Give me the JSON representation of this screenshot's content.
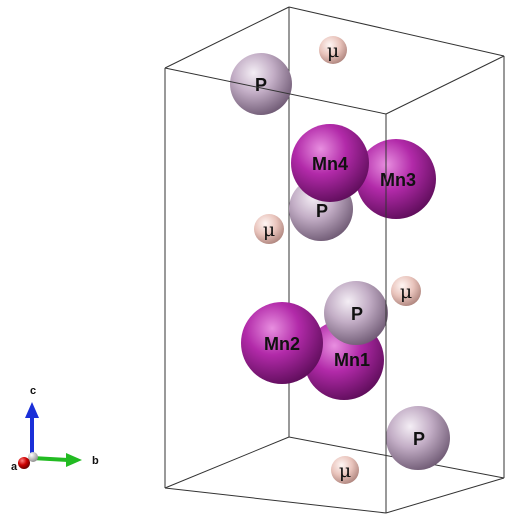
{
  "atoms": [
    {
      "id": "P-top",
      "label": "P",
      "type": "P"
    },
    {
      "id": "Mn3",
      "label": "Mn3",
      "type": "Mn"
    },
    {
      "id": "P-mid",
      "label": "P",
      "type": "P"
    },
    {
      "id": "Mn4",
      "label": "Mn4",
      "type": "Mn"
    },
    {
      "id": "Mn1",
      "label": "Mn1",
      "type": "Mn"
    },
    {
      "id": "Mn2",
      "label": "Mn2",
      "type": "Mn"
    },
    {
      "id": "P-low",
      "label": "P",
      "type": "P"
    },
    {
      "id": "P-bottom",
      "label": "P",
      "type": "P"
    }
  ],
  "muon_sites": [
    {
      "id": "mu-top",
      "label": "μ"
    },
    {
      "id": "mu-left",
      "label": "μ"
    },
    {
      "id": "mu-right",
      "label": "μ"
    },
    {
      "id": "mu-bottom",
      "label": "μ"
    }
  ],
  "axes": {
    "a": "a",
    "b": "b",
    "c": "c"
  },
  "colors": {
    "P": "#b7a0bb",
    "Mn": "#a61ca0",
    "mu": "#e9c4bc",
    "axis_a": "#cc0000",
    "axis_b": "#22bb22",
    "axis_c": "#1a2fd8",
    "cell_edge": "#222222"
  }
}
